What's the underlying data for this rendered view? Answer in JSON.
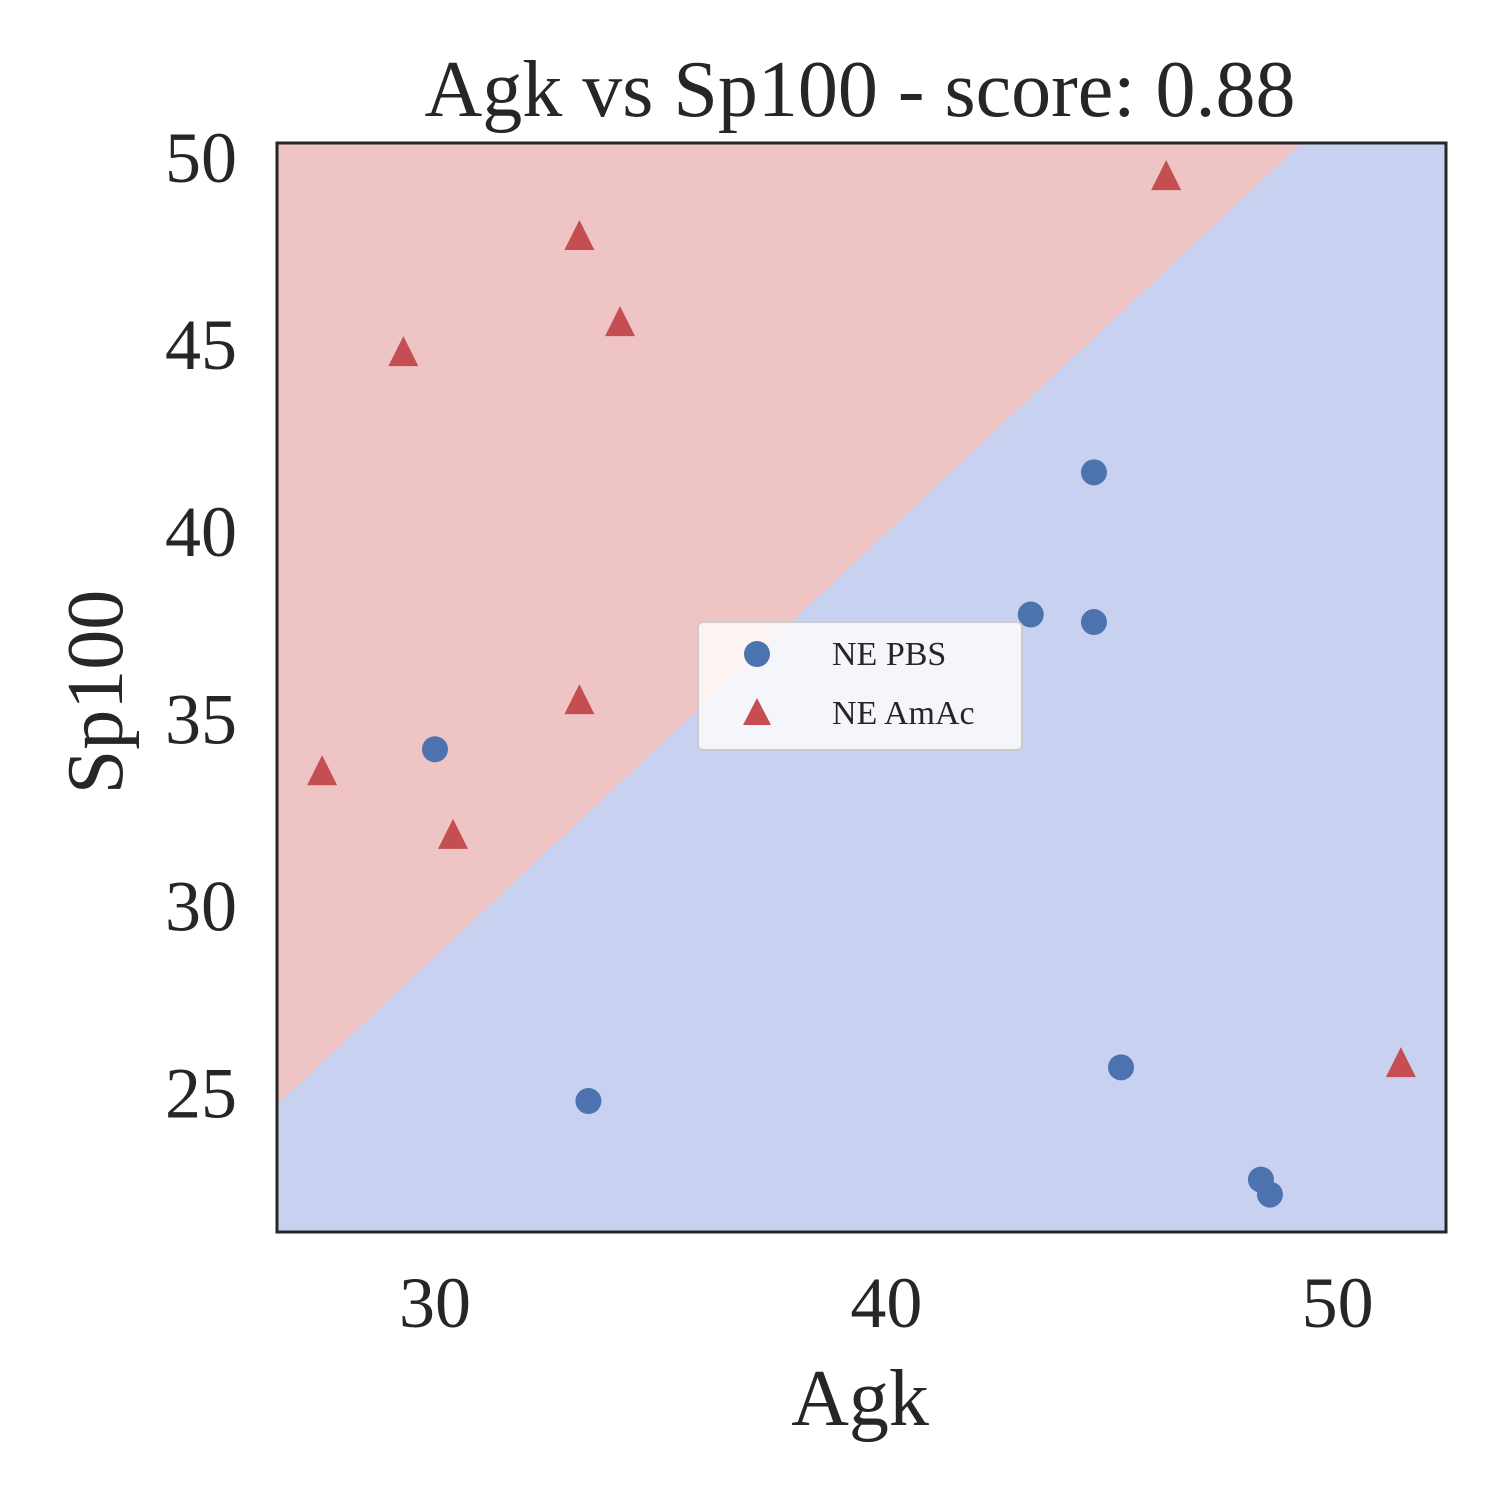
{
  "chart_data": {
    "type": "scatter",
    "title": "Agk vs Sp100 - score: 0.88",
    "xlabel": "Agk",
    "ylabel": "Sp100",
    "xlim": [
      26.5,
      52.4
    ],
    "ylim": [
      21.3,
      50.4
    ],
    "xticks": [
      30,
      40,
      50
    ],
    "yticks": [
      25,
      30,
      35,
      40,
      45,
      50
    ],
    "grid": false,
    "legend_position": "center",
    "decision_boundary": {
      "points": [
        [
          26.5,
          24.7
        ],
        [
          49.2,
          50.4
        ]
      ],
      "upper_region_class": "NE AmAc",
      "lower_region_class": "NE PBS",
      "upper_color": "#eec4c4",
      "lower_color": "#c9d1f1"
    },
    "series": [
      {
        "name": "NE PBS",
        "marker": "circle",
        "color": "#4c72b0",
        "points": [
          [
            30.0,
            34.2
          ],
          [
            33.4,
            24.8
          ],
          [
            43.2,
            37.8
          ],
          [
            44.6,
            41.6
          ],
          [
            44.6,
            37.6
          ],
          [
            45.2,
            25.7
          ],
          [
            48.3,
            22.7
          ],
          [
            48.5,
            22.3
          ]
        ]
      },
      {
        "name": "NE AmAc",
        "marker": "triangle",
        "color": "#c44e52",
        "points": [
          [
            27.5,
            33.6
          ],
          [
            29.3,
            44.8
          ],
          [
            30.4,
            31.9
          ],
          [
            33.2,
            47.9
          ],
          [
            33.2,
            35.5
          ],
          [
            34.1,
            45.6
          ],
          [
            46.2,
            49.5
          ],
          [
            51.4,
            25.8
          ]
        ]
      }
    ]
  }
}
